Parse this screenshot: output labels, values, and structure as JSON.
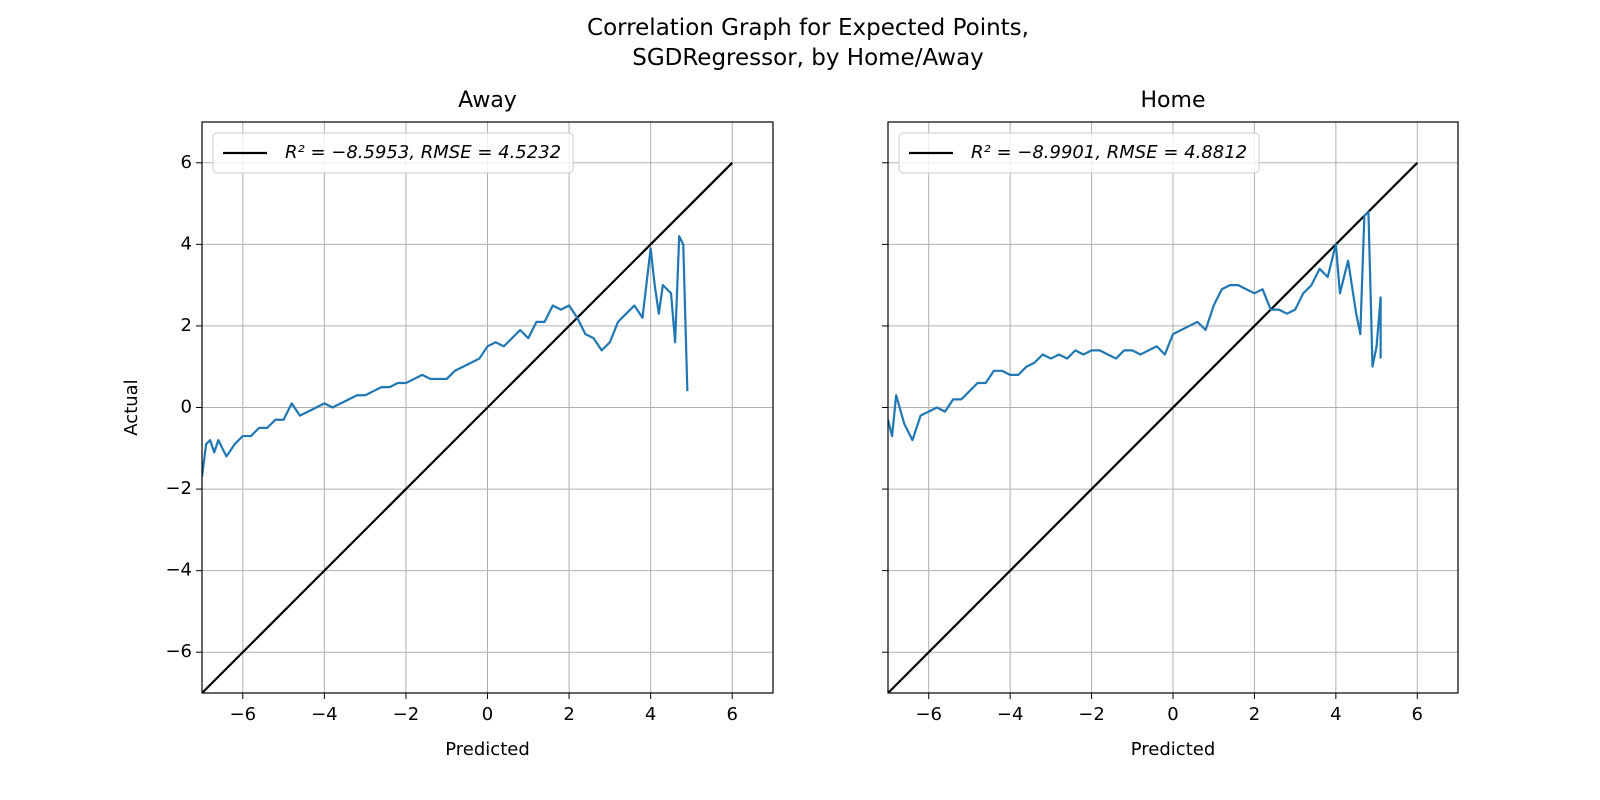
{
  "title": "Correlation Graph for Expected Points,\nSGDRegressor, by Home/Away",
  "chart_data": [
    {
      "type": "line",
      "title": "Away",
      "xlabel": "Predicted",
      "ylabel": "Actual",
      "xlim": [
        -7,
        7
      ],
      "ylim": [
        -7,
        7
      ],
      "xticks": [
        {
          "value": -6,
          "label": "−6"
        },
        {
          "value": -4,
          "label": "−4"
        },
        {
          "value": -2,
          "label": "−2"
        },
        0,
        2,
        4,
        6
      ],
      "yticks": [
        {
          "value": -6,
          "label": "−6"
        },
        {
          "value": -4,
          "label": "−4"
        },
        {
          "value": -2,
          "label": "−2"
        },
        0,
        2,
        4,
        6
      ],
      "show_ytick_labels": true,
      "grid": true,
      "legend": "upper left",
      "series": [
        {
          "name": "R² = −8.5953, RMSE = 4.5232",
          "color": "#000000",
          "x": [
            -7,
            6
          ],
          "values": [
            -7,
            6
          ]
        },
        {
          "color": "#1f77b4",
          "x": [
            -7,
            -6.9,
            -6.8,
            -6.7,
            -6.6,
            -6.4,
            -6.2,
            -6.0,
            -5.8,
            -5.6,
            -5.4,
            -5.2,
            -5.0,
            -4.8,
            -4.6,
            -4.4,
            -4.2,
            -4.0,
            -3.8,
            -3.6,
            -3.4,
            -3.2,
            -3.0,
            -2.8,
            -2.6,
            -2.4,
            -2.2,
            -2.0,
            -1.8,
            -1.6,
            -1.4,
            -1.2,
            -1.0,
            -0.8,
            -0.6,
            -0.4,
            -0.2,
            0.0,
            0.2,
            0.4,
            0.6,
            0.8,
            1.0,
            1.2,
            1.4,
            1.6,
            1.8,
            2.0,
            2.2,
            2.4,
            2.6,
            2.8,
            3.0,
            3.2,
            3.4,
            3.6,
            3.8,
            4.0,
            4.1,
            4.2,
            4.3,
            4.5,
            4.6,
            4.7,
            4.8,
            4.9
          ],
          "values": [
            -1.7,
            -0.9,
            -0.8,
            -1.1,
            -0.8,
            -1.2,
            -0.9,
            -0.7,
            -0.7,
            -0.5,
            -0.5,
            -0.3,
            -0.3,
            0.1,
            -0.2,
            -0.1,
            0.0,
            0.1,
            0.0,
            0.1,
            0.2,
            0.3,
            0.3,
            0.4,
            0.5,
            0.5,
            0.6,
            0.6,
            0.7,
            0.8,
            0.7,
            0.7,
            0.7,
            0.9,
            1.0,
            1.1,
            1.2,
            1.5,
            1.6,
            1.5,
            1.7,
            1.9,
            1.7,
            2.1,
            2.1,
            2.5,
            2.4,
            2.5,
            2.2,
            1.8,
            1.7,
            1.4,
            1.6,
            2.1,
            2.3,
            2.5,
            2.2,
            3.9,
            3.0,
            2.3,
            3.0,
            2.8,
            1.6,
            4.2,
            4.0,
            0.4
          ]
        }
      ]
    },
    {
      "type": "line",
      "title": "Home",
      "xlabel": "Predicted",
      "xlim": [
        -7,
        7
      ],
      "ylim": [
        -7,
        7
      ],
      "xticks": [
        {
          "value": -6,
          "label": "−6"
        },
        {
          "value": -4,
          "label": "−4"
        },
        {
          "value": -2,
          "label": "−2"
        },
        0,
        2,
        4,
        6
      ],
      "yticks": [
        -6,
        -4,
        -2,
        0,
        2,
        4,
        6
      ],
      "show_ytick_labels": false,
      "grid": true,
      "legend": "upper left",
      "series": [
        {
          "name": "R² = −8.9901, RMSE = 4.8812",
          "color": "#000000",
          "x": [
            -7,
            6
          ],
          "values": [
            -7,
            6
          ]
        },
        {
          "color": "#1f77b4",
          "x": [
            -7,
            -6.9,
            -6.8,
            -6.6,
            -6.4,
            -6.2,
            -6.0,
            -5.8,
            -5.6,
            -5.4,
            -5.2,
            -5.0,
            -4.8,
            -4.6,
            -4.4,
            -4.2,
            -4.0,
            -3.8,
            -3.6,
            -3.4,
            -3.2,
            -3.0,
            -2.8,
            -2.6,
            -2.4,
            -2.2,
            -2.0,
            -1.8,
            -1.6,
            -1.4,
            -1.2,
            -1.0,
            -0.8,
            -0.6,
            -0.4,
            -0.2,
            0.0,
            0.2,
            0.4,
            0.6,
            0.8,
            1.0,
            1.2,
            1.4,
            1.6,
            1.8,
            2.0,
            2.2,
            2.4,
            2.6,
            2.8,
            3.0,
            3.2,
            3.4,
            3.6,
            3.8,
            4.0,
            4.1,
            4.3,
            4.5,
            4.6,
            4.7,
            4.8,
            4.9,
            5.0,
            5.1,
            5.1
          ],
          "values": [
            -0.3,
            -0.7,
            0.3,
            -0.4,
            -0.8,
            -0.2,
            -0.1,
            0.0,
            -0.1,
            0.2,
            0.2,
            0.4,
            0.6,
            0.6,
            0.9,
            0.9,
            0.8,
            0.8,
            1.0,
            1.1,
            1.3,
            1.2,
            1.3,
            1.2,
            1.4,
            1.3,
            1.4,
            1.4,
            1.3,
            1.2,
            1.4,
            1.4,
            1.3,
            1.4,
            1.5,
            1.3,
            1.8,
            1.9,
            2.0,
            2.1,
            1.9,
            2.5,
            2.9,
            3.0,
            3.0,
            2.9,
            2.8,
            2.9,
            2.4,
            2.4,
            2.3,
            2.4,
            2.8,
            3.0,
            3.4,
            3.2,
            4.0,
            2.8,
            3.6,
            2.3,
            1.8,
            4.7,
            4.8,
            1.0,
            1.5,
            2.7,
            1.2
          ]
        }
      ]
    }
  ]
}
